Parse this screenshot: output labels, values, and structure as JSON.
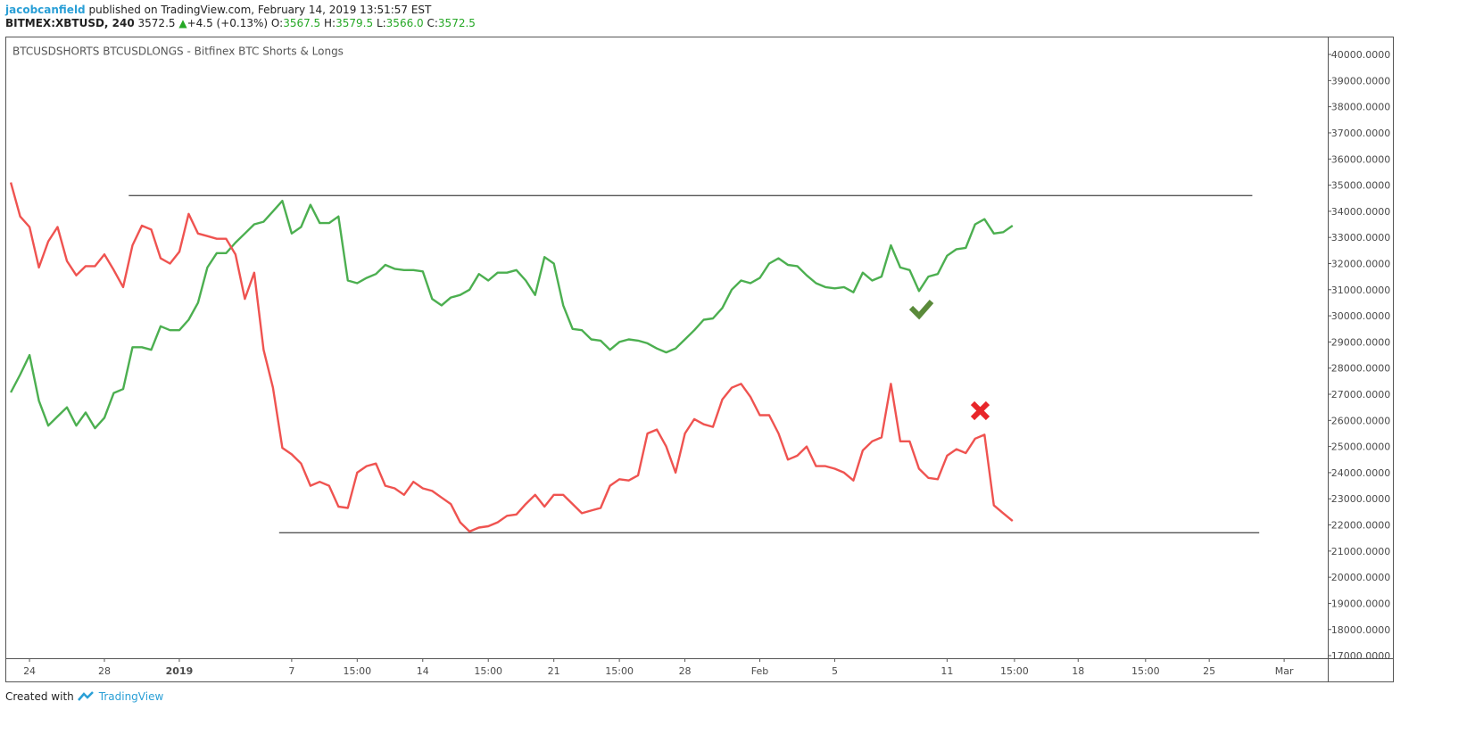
{
  "header": {
    "author": "jacobcanfield",
    "published": "published on TradingView.com, February 14, 2019 13:51:57 EST",
    "symbol": "BITMEX:XBTUSD, 240",
    "last": "3572.5",
    "arrow": "▲",
    "change": "+4.5 (+0.13%)",
    "ohlc": [
      {
        "label": "O:",
        "value": "3567.5"
      },
      {
        "label": "H:",
        "value": "3579.5"
      },
      {
        "label": "L:",
        "value": "3566.0"
      },
      {
        "label": "C:",
        "value": "3572.5"
      }
    ]
  },
  "footer": {
    "text": "Created with",
    "brand": "TradingView"
  },
  "chart_data": {
    "type": "line",
    "title": "BTCUSDSHORTS BTCUSDLONGS - Bitfinex BTC Shorts & Longs",
    "grid": false,
    "xlim": [
      -9.29,
      61.33
    ],
    "ylim": [
      16900,
      40650
    ],
    "xticks": [
      {
        "value": -8,
        "label": "24"
      },
      {
        "value": -4,
        "label": "28"
      },
      {
        "value": 0,
        "label": "2019"
      },
      {
        "value": 6,
        "label": "7"
      },
      {
        "value": 9.5,
        "label": "15:00"
      },
      {
        "value": 13,
        "label": "14"
      },
      {
        "value": 16.5,
        "label": "15:00"
      },
      {
        "value": 20,
        "label": "21"
      },
      {
        "value": 23.5,
        "label": "15:00"
      },
      {
        "value": 27,
        "label": "28"
      },
      {
        "value": 31,
        "label": "Feb"
      },
      {
        "value": 35,
        "label": "5"
      },
      {
        "value": 41,
        "label": "11"
      },
      {
        "value": 44.6,
        "label": "15:00"
      },
      {
        "value": 48,
        "label": "18"
      },
      {
        "value": 51.6,
        "label": "15:00"
      },
      {
        "value": 55,
        "label": "25"
      },
      {
        "value": 59,
        "label": "Mar"
      }
    ],
    "yticks": [
      {
        "value": 17000,
        "label": "17000.0000"
      },
      {
        "value": 18000,
        "label": "18000.0000"
      },
      {
        "value": 19000,
        "label": "19000.0000"
      },
      {
        "value": 20000,
        "label": "20000.0000"
      },
      {
        "value": 21000,
        "label": "21000.0000"
      },
      {
        "value": 22000,
        "label": "22000.0000"
      },
      {
        "value": 23000,
        "label": "23000.0000"
      },
      {
        "value": 24000,
        "label": "24000.0000"
      },
      {
        "value": 25000,
        "label": "25000.0000"
      },
      {
        "value": 26000,
        "label": "26000.0000"
      },
      {
        "value": 27000,
        "label": "27000.0000"
      },
      {
        "value": 28000,
        "label": "28000.0000"
      },
      {
        "value": 29000,
        "label": "29000.0000"
      },
      {
        "value": 30000,
        "label": "30000.0000"
      },
      {
        "value": 31000,
        "label": "31000.0000"
      },
      {
        "value": 32000,
        "label": "32000.0000"
      },
      {
        "value": 33000,
        "label": "33000.0000"
      },
      {
        "value": 34000,
        "label": "34000.0000"
      },
      {
        "value": 35000,
        "label": "35000.0000"
      },
      {
        "value": 36000,
        "label": "36000.0000"
      },
      {
        "value": 37000,
        "label": "37000.0000"
      },
      {
        "value": 38000,
        "label": "38000.0000"
      },
      {
        "value": 39000,
        "label": "39000.0000"
      },
      {
        "value": 40000,
        "label": "40000.0000"
      }
    ],
    "x": [
      -9,
      -8.5,
      -8,
      -7.5,
      -7,
      -6.5,
      -6,
      -5.5,
      -5,
      -4.5,
      -4,
      -3.5,
      -3,
      -2.5,
      -2,
      -1.5,
      -1,
      -0.5,
      0,
      0.5,
      1,
      1.5,
      2,
      2.5,
      3,
      3.5,
      4,
      4.5,
      5,
      5.5,
      6,
      6.5,
      7,
      7.5,
      8,
      8.5,
      9,
      9.5,
      10,
      10.5,
      11,
      11.5,
      12,
      12.5,
      13,
      13.5,
      14,
      14.5,
      15,
      15.5,
      16,
      16.5,
      17,
      17.5,
      18,
      18.5,
      19,
      19.5,
      20,
      20.5,
      21,
      21.5,
      22,
      22.5,
      23,
      23.5,
      24,
      24.5,
      25,
      25.5,
      26,
      26.5,
      27,
      27.5,
      28,
      28.5,
      29,
      29.5,
      30,
      30.5,
      31,
      31.5,
      32,
      32.5,
      33,
      33.5,
      34,
      34.5,
      35,
      35.5,
      36,
      36.5,
      37,
      37.5,
      38,
      38.5,
      39,
      39.5,
      40,
      40.5,
      41,
      41.5,
      42,
      42.5,
      43,
      43.5,
      44,
      44.5
    ],
    "series": [
      {
        "color": "#4caf50",
        "values": [
          27070,
          27750,
          28500,
          26750,
          25800,
          26150,
          26500,
          25800,
          26300,
          25700,
          26100,
          27050,
          27200,
          28800,
          28800,
          28700,
          29600,
          29450,
          29450,
          29850,
          30500,
          31850,
          32400,
          32400,
          32800,
          33150,
          33500,
          33600,
          34000,
          34400,
          33150,
          33400,
          34250,
          33550,
          33550,
          33800,
          31350,
          31250,
          31450,
          31600,
          31950,
          31800,
          31750,
          31750,
          31700,
          30650,
          30400,
          30700,
          30800,
          31000,
          31600,
          31350,
          31650,
          31650,
          31750,
          31350,
          30800,
          32250,
          32000,
          30400,
          29500,
          29450,
          29100,
          29050,
          28700,
          29000,
          29100,
          29050,
          28950,
          28750,
          28600,
          28750,
          29100,
          29450,
          29850,
          29900,
          30300,
          31000,
          31350,
          31250,
          31450,
          32000,
          32200,
          31950,
          31900,
          31550,
          31250,
          31100,
          31050,
          31100,
          30900,
          31650,
          31350,
          31500,
          32700,
          31850,
          31750,
          30950,
          31500,
          31600,
          32300,
          32550,
          32600,
          33500,
          33700,
          33150,
          33200,
          33450
        ]
      },
      {
        "color": "#ef5350",
        "values": [
          35100,
          33800,
          33400,
          31850,
          32850,
          33400,
          32100,
          31550,
          31900,
          31900,
          32350,
          31750,
          31100,
          32700,
          33450,
          33300,
          32200,
          32000,
          32450,
          33900,
          33150,
          33050,
          32950,
          32950,
          32350,
          30650,
          31650,
          28700,
          27250,
          24950,
          24700,
          24350,
          23500,
          23650,
          23500,
          22700,
          22650,
          24000,
          24250,
          24350,
          23500,
          23400,
          23150,
          23650,
          23400,
          23300,
          23050,
          22800,
          22100,
          21750,
          21900,
          21950,
          22100,
          22350,
          22400,
          22800,
          23150,
          22700,
          23150,
          23150,
          22800,
          22450,
          22550,
          22650,
          23500,
          23750,
          23700,
          23900,
          25500,
          25650,
          25000,
          24000,
          25500,
          26050,
          25850,
          25750,
          26800,
          27250,
          27400,
          26900,
          26200,
          26200,
          25500,
          24500,
          24650,
          25000,
          24250,
          24250,
          24150,
          24000,
          23700,
          24850,
          25200,
          25350,
          27400,
          25200,
          25200,
          24150,
          23800,
          23750,
          24650,
          24900,
          24750,
          25300,
          25450,
          22750,
          22450,
          22150
        ]
      }
    ],
    "reference_lines": [
      {
        "value": 34600,
        "x": [
          -2.7,
          57.3
        ]
      },
      {
        "value": 21700,
        "x": [
          5.33,
          57.67
        ]
      }
    ]
  }
}
